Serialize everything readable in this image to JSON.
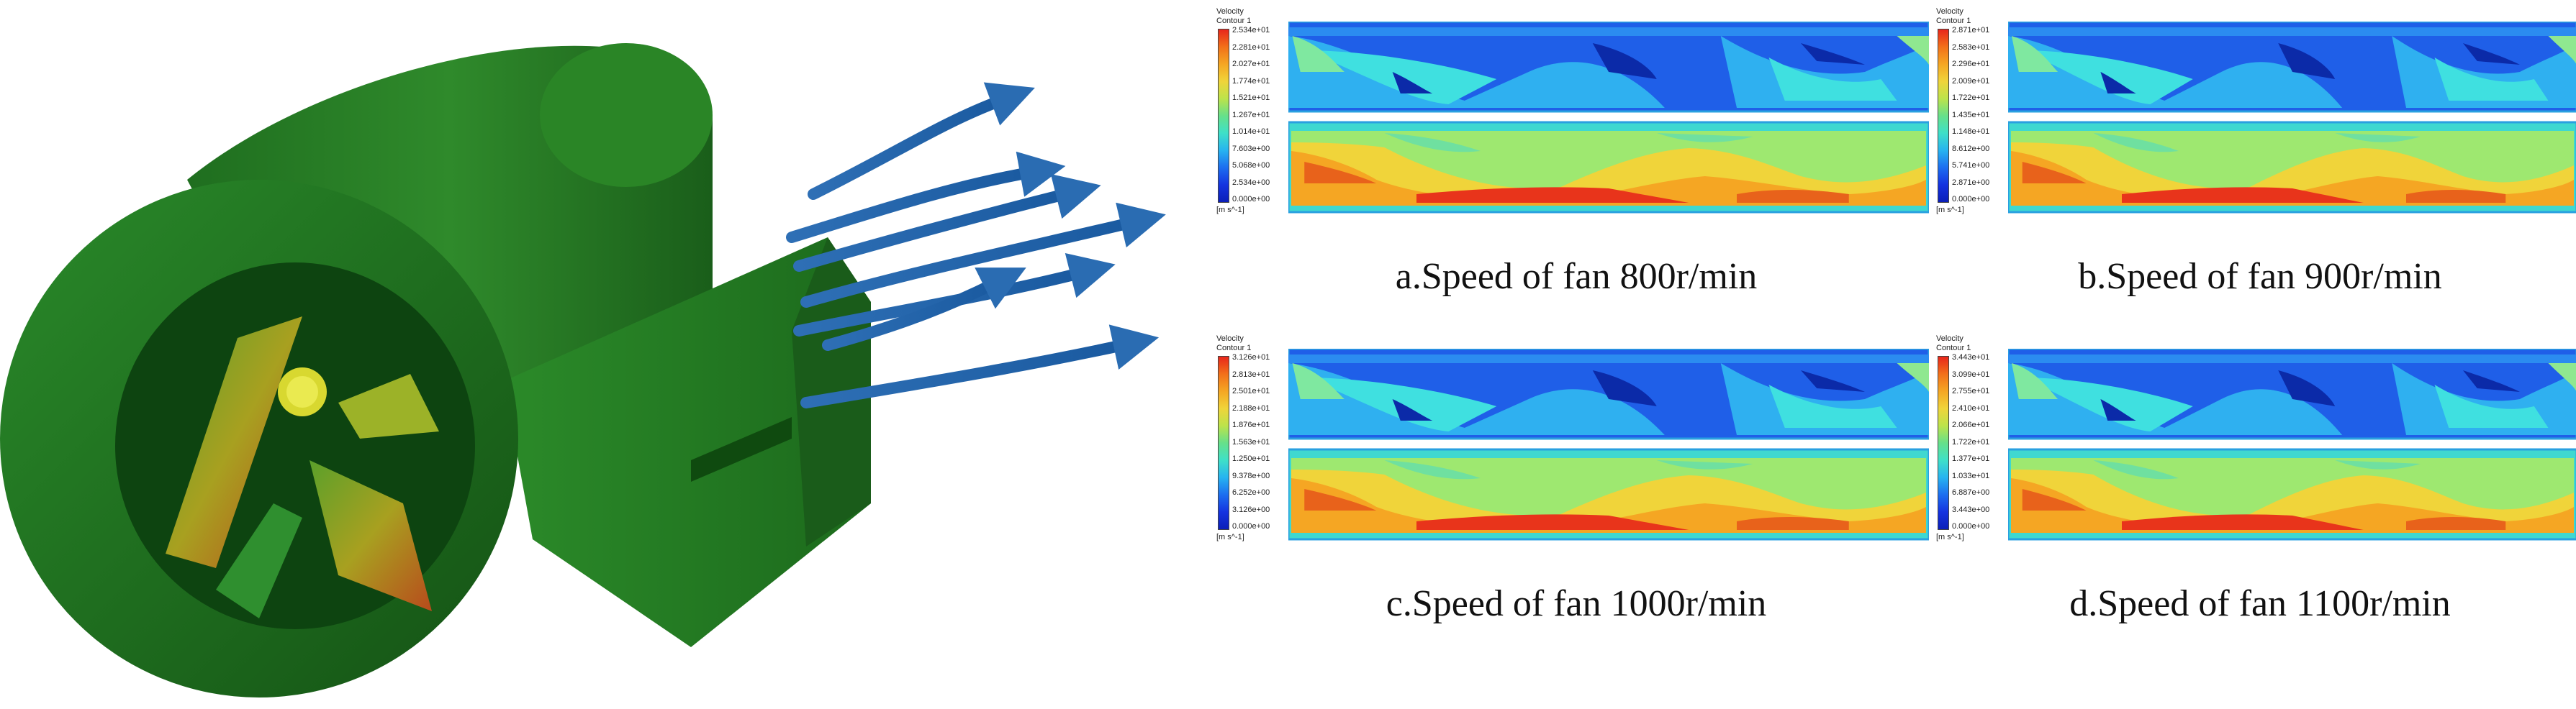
{
  "figure": {
    "panels": [
      {
        "id": "a",
        "legend": {
          "title_line1": "Velocity",
          "title_line2": "Contour 1",
          "ticks": [
            "2.534e+01",
            "2.281e+01",
            "2.027e+01",
            "1.774e+01",
            "1.521e+01",
            "1.267e+01",
            "1.014e+01",
            "7.603e+00",
            "5.068e+00",
            "2.534e+00",
            "0.000e+00"
          ],
          "unit": "[m s^-1]"
        },
        "caption": "a.Speed of fan 800r/min"
      },
      {
        "id": "b",
        "legend": {
          "title_line1": "Velocity",
          "title_line2": "Contour 1",
          "ticks": [
            "2.871e+01",
            "2.583e+01",
            "2.296e+01",
            "2.009e+01",
            "1.722e+01",
            "1.435e+01",
            "1.148e+01",
            "8.612e+00",
            "5.741e+00",
            "2.871e+00",
            "0.000e+00"
          ],
          "unit": "[m s^-1]"
        },
        "caption": "b.Speed of fan 900r/min"
      },
      {
        "id": "c",
        "legend": {
          "title_line1": "Velocity",
          "title_line2": "Contour 1",
          "ticks": [
            "3.126e+01",
            "2.813e+01",
            "2.501e+01",
            "2.188e+01",
            "1.876e+01",
            "1.563e+01",
            "1.250e+01",
            "9.378e+00",
            "6.252e+00",
            "3.126e+00",
            "0.000e+00"
          ],
          "unit": "[m s^-1]"
        },
        "caption": "c.Speed of fan 1000r/min"
      },
      {
        "id": "d",
        "legend": {
          "title_line1": "Velocity",
          "title_line2": "Contour 1",
          "ticks": [
            "3.443e+01",
            "3.099e+01",
            "2.755e+01",
            "2.410e+01",
            "2.066e+01",
            "1.722e+01",
            "1.377e+01",
            "1.033e+01",
            "6.887e+00",
            "3.443e+00",
            "0.000e+00"
          ],
          "unit": "[m s^-1]"
        },
        "caption": "d.Speed of fan 1100r/min"
      }
    ]
  }
}
